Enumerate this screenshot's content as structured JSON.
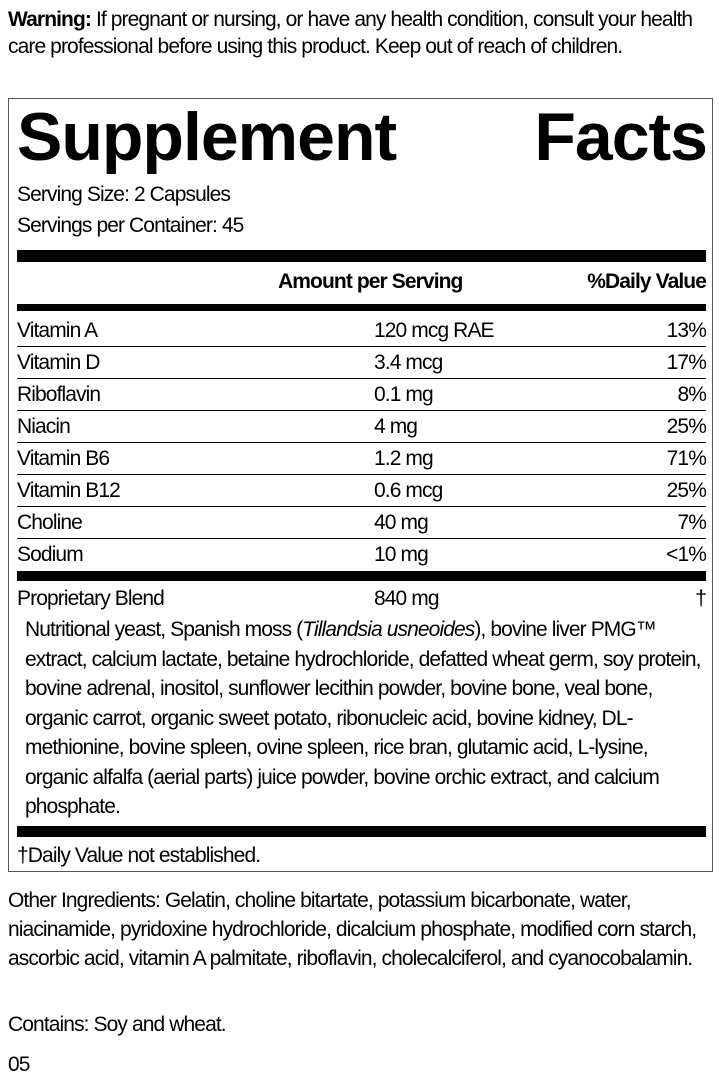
{
  "warning": {
    "label": "Warning:",
    "text": " If pregnant or nursing, or have any health condition, consult your health care professional before using this product. Keep out of reach of children."
  },
  "facts": {
    "title_word1": "Supplement",
    "title_word2": "Facts",
    "serving_size": "Serving Size: 2 Capsules",
    "servings_per_container": "Servings per Container: 45",
    "header_amount": "Amount per Serving",
    "header_dv": "%Daily Value",
    "rows": [
      {
        "name": "Vitamin A",
        "amount": "120 mcg RAE",
        "dv": "13%"
      },
      {
        "name": "Vitamin D",
        "amount": "3.4 mcg",
        "dv": "17%"
      },
      {
        "name": "Riboflavin",
        "amount": "0.1 mg",
        "dv": "8%"
      },
      {
        "name": "Niacin",
        "amount": "4 mg",
        "dv": "25%"
      },
      {
        "name": "Vitamin B6",
        "amount": "1.2 mg",
        "dv": "71%"
      },
      {
        "name": "Vitamin B12",
        "amount": "0.6 mcg",
        "dv": "25%"
      },
      {
        "name": "Choline",
        "amount": "40 mg",
        "dv": "7%"
      },
      {
        "name": "Sodium",
        "amount": "10 mg",
        "dv": "<1%"
      }
    ],
    "blend": {
      "name": "Proprietary Blend",
      "amount": "840 mg",
      "dv": "†",
      "text_before": "Nutritional yeast, Spanish moss (",
      "text_italic": "Tillandsia usneoides",
      "text_after": "), bovine liver PMG™ extract, calcium lactate, betaine hydrochloride, defatted wheat germ, soy protein, bovine adrenal, inositol, sunflower lecithin powder, bovine bone, veal bone, organic carrot, organic sweet potato, ribonucleic acid, bovine kidney, DL-methionine, bovine spleen, ovine spleen, rice bran, glutamic acid, L-lysine, organic alfalfa (aerial parts) juice powder, bovine orchic extract, and calcium phosphate."
    },
    "footnote": "†Daily Value not established."
  },
  "other_ingredients": "Other Ingredients: Gelatin, choline bitartate, potassium bicarbonate, water, niacinamide, pyridoxine hydrochloride, dicalcium phosphate, modified corn starch, ascorbic acid, vitamin A palmitate, riboflavin, cholecalciferol, and cyanocobalamin.",
  "contains": "Contains: Soy and wheat.",
  "code": "05"
}
